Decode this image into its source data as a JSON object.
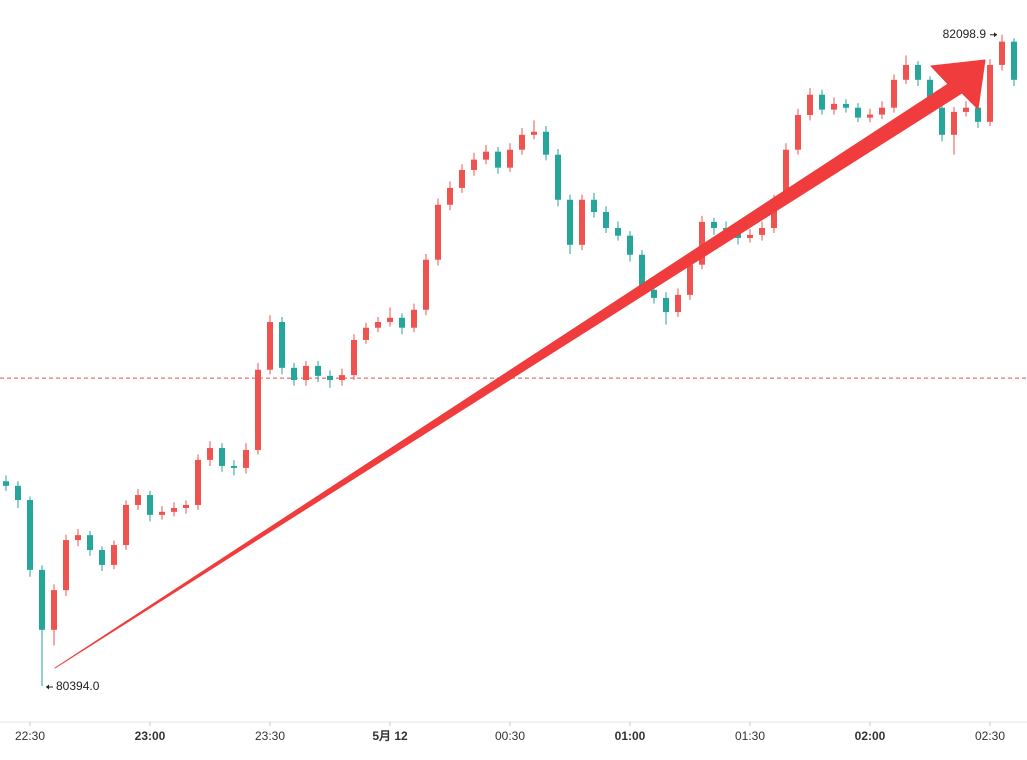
{
  "chart_data": {
    "type": "candlestick",
    "categories": [
      "22:24",
      "22:27",
      "22:30",
      "22:33",
      "22:36",
      "22:39",
      "22:42",
      "22:45",
      "22:48",
      "22:51",
      "22:54",
      "22:57",
      "23:00",
      "23:03",
      "23:06",
      "23:09",
      "23:12",
      "23:15",
      "23:18",
      "23:21",
      "23:24",
      "23:27",
      "23:30",
      "23:33",
      "23:36",
      "23:39",
      "23:42",
      "23:45",
      "23:48",
      "23:51",
      "23:54",
      "23:57",
      "00:00",
      "00:03",
      "00:06",
      "00:09",
      "00:12",
      "00:15",
      "00:18",
      "00:21",
      "00:24",
      "00:27",
      "00:30",
      "00:33",
      "00:36",
      "00:39",
      "00:42",
      "00:45",
      "00:48",
      "00:51",
      "00:54",
      "00:57",
      "01:00",
      "01:03",
      "01:06",
      "01:09",
      "01:12",
      "01:15",
      "01:18",
      "01:21",
      "01:24",
      "01:27",
      "01:30",
      "01:33",
      "01:36",
      "01:39",
      "01:42",
      "01:45",
      "01:48",
      "01:51",
      "01:54",
      "01:57",
      "02:00",
      "02:03",
      "02:06",
      "02:09",
      "02:12",
      "02:15",
      "02:18",
      "02:21",
      "02:24",
      "02:27",
      "02:30",
      "02:33",
      "02:36"
    ],
    "open": [
      80930,
      80918,
      80881,
      80698,
      80541,
      80645,
      80776,
      80789,
      80750,
      80711,
      80763,
      80868,
      80894,
      80842,
      80850,
      80860,
      80868,
      80986,
      81017,
      80970,
      80965,
      81012,
      81222,
      81347,
      81227,
      81195,
      81232,
      81206,
      81195,
      81208,
      81300,
      81332,
      81347,
      81358,
      81332,
      81379,
      81510,
      81654,
      81698,
      81745,
      81772,
      81793,
      81751,
      81798,
      81837,
      81845,
      81785,
      81667,
      81549,
      81667,
      81635,
      81593,
      81573,
      81523,
      81431,
      81410,
      81373,
      81418,
      81497,
      81609,
      81593,
      81588,
      81567,
      81575,
      81593,
      81667,
      81798,
      81889,
      81942,
      81903,
      81918,
      81908,
      81882,
      81890,
      81908,
      81981,
      82020,
      81981,
      81908,
      81837,
      81897,
      81908,
      81871,
      82020,
      82081
    ],
    "high": [
      80945,
      80930,
      80890,
      80710,
      80660,
      80790,
      80805,
      80800,
      80760,
      80775,
      80880,
      80910,
      80905,
      80865,
      80875,
      80880,
      81000,
      81035,
      81030,
      80985,
      81030,
      81240,
      81365,
      81360,
      81240,
      81245,
      81245,
      81220,
      81225,
      81315,
      81345,
      81360,
      81385,
      81370,
      81395,
      81525,
      81670,
      81715,
      81760,
      81790,
      81810,
      81805,
      81815,
      81855,
      81875,
      81860,
      81800,
      81680,
      81680,
      81685,
      81650,
      81610,
      81585,
      81535,
      81445,
      81425,
      81435,
      81510,
      81625,
      81620,
      81610,
      81600,
      81590,
      81610,
      81680,
      81815,
      81905,
      81960,
      81955,
      81935,
      81930,
      81920,
      81905,
      81925,
      81995,
      82045,
      82030,
      81990,
      81920,
      81910,
      81925,
      81920,
      82035,
      82098.9,
      82090
    ],
    "low": [
      80905,
      80860,
      80680,
      80394.0,
      80500,
      80630,
      80760,
      80735,
      80695,
      80700,
      80750,
      80855,
      80825,
      80830,
      80838,
      80845,
      80855,
      80970,
      80955,
      80945,
      80950,
      81000,
      81210,
      81210,
      81180,
      81180,
      81190,
      81175,
      81180,
      81195,
      81290,
      81320,
      81335,
      81315,
      81320,
      81365,
      81495,
      81640,
      81685,
      81730,
      81760,
      81735,
      81740,
      81785,
      81825,
      81770,
      81650,
      81525,
      81535,
      81620,
      81580,
      81560,
      81505,
      81415,
      81395,
      81340,
      81360,
      81405,
      81485,
      81575,
      81570,
      81550,
      81555,
      81560,
      81580,
      81655,
      81785,
      81875,
      81890,
      81890,
      81895,
      81870,
      81870,
      81878,
      81895,
      81970,
      81965,
      81895,
      81820,
      81785,
      81885,
      81855,
      81860,
      82005,
      81965
    ],
    "close": [
      80918,
      80881,
      80698,
      80541,
      80645,
      80776,
      80789,
      80750,
      80711,
      80763,
      80868,
      80894,
      80842,
      80850,
      80860,
      80868,
      80986,
      81017,
      80970,
      80965,
      81012,
      81222,
      81347,
      81227,
      81195,
      81232,
      81206,
      81195,
      81208,
      81300,
      81332,
      81347,
      81358,
      81332,
      81379,
      81510,
      81654,
      81698,
      81745,
      81772,
      81793,
      81751,
      81798,
      81837,
      81845,
      81785,
      81667,
      81549,
      81667,
      81635,
      81593,
      81573,
      81523,
      81431,
      81410,
      81373,
      81418,
      81497,
      81609,
      81593,
      81588,
      81567,
      81575,
      81593,
      81667,
      81798,
      81889,
      81942,
      81903,
      81918,
      81908,
      81882,
      81890,
      81908,
      81981,
      82020,
      81981,
      81908,
      81837,
      81897,
      81908,
      81871,
      82020,
      82081,
      81981
    ],
    "up_color": "#ef5350",
    "down_color": "#26a69a",
    "ylim": [
      80305,
      82190
    ],
    "xticks": [
      {
        "value": "22:30",
        "label": "22:30",
        "bold": false
      },
      {
        "value": "23:00",
        "label": "23:00",
        "bold": true
      },
      {
        "value": "23:30",
        "label": "23:30",
        "bold": false
      },
      {
        "value": "00:00",
        "label": "5月 12",
        "bold": true
      },
      {
        "value": "00:30",
        "label": "00:30",
        "bold": false
      },
      {
        "value": "01:00",
        "label": "01:00",
        "bold": true
      },
      {
        "value": "01:30",
        "label": "01:30",
        "bold": false
      },
      {
        "value": "02:00",
        "label": "02:00",
        "bold": true
      },
      {
        "value": "02:30",
        "label": "02:30",
        "bold": false
      }
    ],
    "reference_line": {
      "value": 81200,
      "color": "#d9534f"
    },
    "annotations": [
      {
        "label": "80394.0",
        "value": 80394.0,
        "category": "22:33",
        "side": "right"
      },
      {
        "label": "82098.9",
        "value": 82098.9,
        "category": "02:33",
        "side": "left"
      }
    ]
  }
}
